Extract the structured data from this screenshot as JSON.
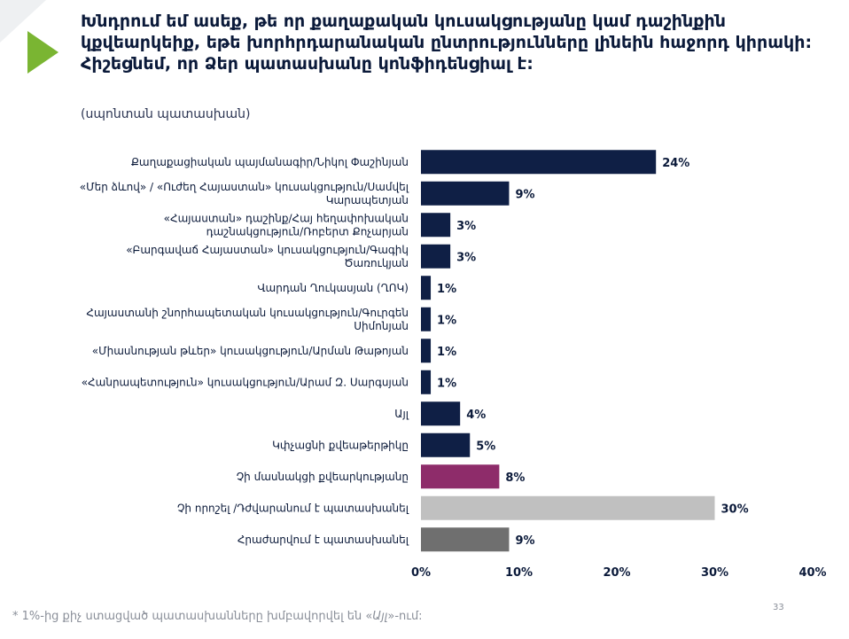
{
  "slide": {
    "title": "Խնդրում եմ ասեք, թե որ քաղաքական կուսակցությանը կամ դաշինքին կքվեարկեիք, եթե խորհրդարանական ընտրությունները լինեին հաջորդ կիրակի: Հիշեցնեմ, որ Ձեր պատասխանը կոնֆիդենցիալ է:",
    "subtitle": "(սպոնտան պատասխան)",
    "footnote_before": "* 1%-ից քիչ ստացված պատասխանները խմբավորվել են «",
    "footnote_italic": "Այլ",
    "footnote_after": "»-ում:",
    "page_number": "33"
  },
  "colors": {
    "primary_bar": "#0f1f45",
    "purple_bar": "#8e2c6a",
    "light_gray_bar": "#c0c0c0",
    "dark_gray_bar": "#6f6f6f",
    "accent_green": "#7ab532"
  },
  "chart_data": {
    "type": "bar",
    "orientation": "horizontal",
    "categories": [
      [
        "Քաղաքացիական պայմանագիր/Նիկոլ Փաշինյան"
      ],
      [
        "«Մեր ձևով» / «Ուժեղ Հայաստան» կուսակցություն/Սամվել",
        "Կարապետյան"
      ],
      [
        "«Հայաստան» դաշինք/Հայ հեղափոխական",
        "դաշնակցություն/Ռոբերտ Քոչարյան"
      ],
      [
        "«Բարգավաճ Հայաստան» կուսակցություն/Գագիկ",
        "Ծառուկյան"
      ],
      [
        "Վարդան Ղուկասյան (ՂՈԿ)"
      ],
      [
        "Հայաստանի շնորհապետական կուսակցություն/Գուրգեն",
        "Սիմոնյան"
      ],
      [
        "«Միասնության թևեր» կուսակցություն/Արման Թաթոյան"
      ],
      [
        "«Հանրապետություն» կուսակցություն/Արամ Զ. Սարգսյան"
      ],
      [
        "Այլ"
      ],
      [
        "Կփչացնի քվեաթերթիկը"
      ],
      [
        "Չի մասնակցի քվեարկությանը"
      ],
      [
        "Չի որոշել /Դժվարանում է պատասխանել"
      ],
      [
        "Հրաժարվում է պատասխանել"
      ]
    ],
    "values": [
      24,
      9,
      3,
      3,
      1,
      1,
      1,
      1,
      4,
      5,
      8,
      30,
      9
    ],
    "value_labels": [
      "24%",
      "9%",
      "3%",
      "3%",
      "1%",
      "1%",
      "1%",
      "1%",
      "4%",
      "5%",
      "8%",
      "30%",
      "9%"
    ],
    "bar_colors": [
      "#0f1f45",
      "#0f1f45",
      "#0f1f45",
      "#0f1f45",
      "#0f1f45",
      "#0f1f45",
      "#0f1f45",
      "#0f1f45",
      "#0f1f45",
      "#0f1f45",
      "#8e2c6a",
      "#c0c0c0",
      "#6f6f6f"
    ],
    "xlim": [
      0,
      40
    ],
    "xticks": [
      0,
      10,
      20,
      30,
      40
    ],
    "xtick_labels": [
      "0%",
      "10%",
      "20%",
      "30%",
      "40%"
    ],
    "grid": false
  }
}
